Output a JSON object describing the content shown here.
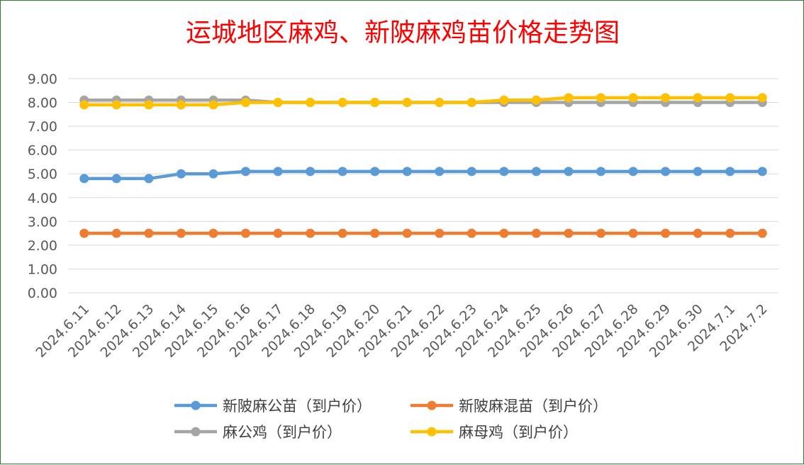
{
  "chart_data": {
    "type": "line",
    "title": "运城地区麻鸡、新陂麻鸡苗价格走势图",
    "xlabel": "",
    "ylabel": "",
    "ylim": [
      0,
      9
    ],
    "yticks": [
      "0.00",
      "1.00",
      "2.00",
      "3.00",
      "4.00",
      "5.00",
      "6.00",
      "7.00",
      "8.00",
      "9.00"
    ],
    "grid": true,
    "legend_position": "bottom",
    "categories": [
      "2024.6.11",
      "2024.6.12",
      "2024.6.13",
      "2024.6.14",
      "2024.6.15",
      "2024.6.16",
      "2024.6.17",
      "2024.6.18",
      "2024.6.19",
      "2024.6.20",
      "2024.6.21",
      "2024.6.22",
      "2024.6.23",
      "2024.6.24",
      "2024.6.25",
      "2024.6.26",
      "2024.6.27",
      "2024.6.28",
      "2024.6.29",
      "2024.6.30",
      "2024.7.1",
      "2024.7.2"
    ],
    "series": [
      {
        "name": "新陂麻公苗（到户价）",
        "color": "#5b9bd5",
        "values": [
          4.8,
          4.8,
          4.8,
          5.0,
          5.0,
          5.1,
          5.1,
          5.1,
          5.1,
          5.1,
          5.1,
          5.1,
          5.1,
          5.1,
          5.1,
          5.1,
          5.1,
          5.1,
          5.1,
          5.1,
          5.1,
          5.1
        ]
      },
      {
        "name": "新陂麻混苗（到户价）",
        "color": "#ed7d31",
        "values": [
          2.5,
          2.5,
          2.5,
          2.5,
          2.5,
          2.5,
          2.5,
          2.5,
          2.5,
          2.5,
          2.5,
          2.5,
          2.5,
          2.5,
          2.5,
          2.5,
          2.5,
          2.5,
          2.5,
          2.5,
          2.5,
          2.5
        ]
      },
      {
        "name": "麻公鸡（到户价）",
        "color": "#a5a5a5",
        "values": [
          8.1,
          8.1,
          8.1,
          8.1,
          8.1,
          8.1,
          8.0,
          8.0,
          8.0,
          8.0,
          8.0,
          8.0,
          8.0,
          8.0,
          8.0,
          8.0,
          8.0,
          8.0,
          8.0,
          8.0,
          8.0,
          8.0
        ]
      },
      {
        "name": "麻母鸡（到户价）",
        "color": "#ffc000",
        "values": [
          7.9,
          7.9,
          7.9,
          7.9,
          7.9,
          8.0,
          8.0,
          8.0,
          8.0,
          8.0,
          8.0,
          8.0,
          8.0,
          8.1,
          8.1,
          8.2,
          8.2,
          8.2,
          8.2,
          8.2,
          8.2,
          8.2
        ]
      }
    ]
  }
}
